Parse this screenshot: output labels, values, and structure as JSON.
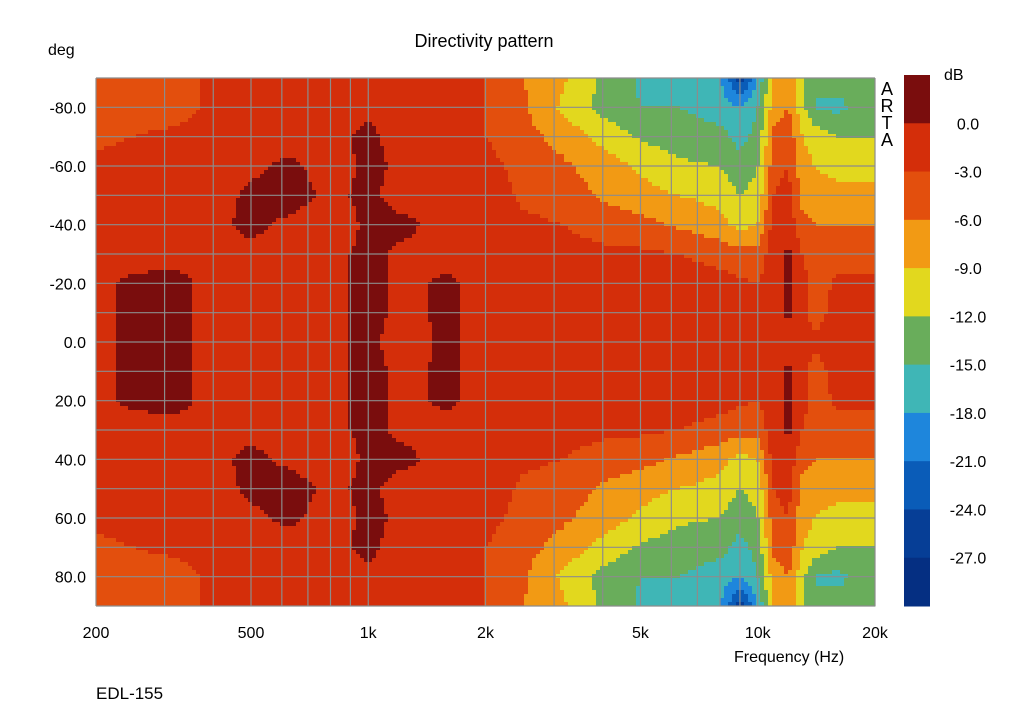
{
  "chart_data": {
    "type": "heatmap",
    "title": "Directivity pattern",
    "xlabel": "Frequency (Hz)",
    "ylabel": "deg",
    "x_scale": "log",
    "xlim": [
      200,
      20000
    ],
    "ylim": [
      -90,
      90
    ],
    "y_axis_inverted": true,
    "x_ticks": [
      {
        "value": 200,
        "label": "200"
      },
      {
        "value": 500,
        "label": "500"
      },
      {
        "value": 1000,
        "label": "1k"
      },
      {
        "value": 2000,
        "label": "2k"
      },
      {
        "value": 5000,
        "label": "5k"
      },
      {
        "value": 10000,
        "label": "10k"
      },
      {
        "value": 20000,
        "label": "20k"
      }
    ],
    "y_ticks": [
      {
        "value": -80,
        "label": "-80.0"
      },
      {
        "value": -60,
        "label": "-60.0"
      },
      {
        "value": -40,
        "label": "-40.0"
      },
      {
        "value": -20,
        "label": "-20.0"
      },
      {
        "value": 0,
        "label": "0.0"
      },
      {
        "value": 20,
        "label": "20.0"
      },
      {
        "value": 40,
        "label": "40.0"
      },
      {
        "value": 60,
        "label": "60.0"
      },
      {
        "value": 80,
        "label": "80.0"
      }
    ],
    "grid": true,
    "colorbar": {
      "unit": "dB",
      "tick_labels": [
        "0.0",
        "-3.0",
        "-6.0",
        "-9.0",
        "-12.0",
        "-15.0",
        "-18.0",
        "-21.0",
        "-24.0",
        "-27.0"
      ],
      "levels": [
        3,
        0,
        -3,
        -6,
        -9,
        -12,
        -15,
        -18,
        -21,
        -24,
        -27,
        -30
      ],
      "colors": [
        "#7a0d0d",
        "#d42e0a",
        "#e34f0d",
        "#f29a14",
        "#e2d81e",
        "#69ad5b",
        "#3fb6b6",
        "#1e86dc",
        "#0a5cb8",
        "#063e96",
        "#052f82"
      ]
    },
    "frequencies": [
      200,
      250,
      315,
      400,
      500,
      630,
      800,
      1000,
      1250,
      1600,
      2000,
      2500,
      3150,
      4000,
      5000,
      6300,
      8000,
      9000,
      10000,
      11000,
      12000,
      13000,
      14000,
      16000,
      18000,
      20000
    ],
    "angles": [
      -90,
      -80,
      -70,
      -60,
      -50,
      -40,
      -30,
      -20,
      -10,
      0,
      10,
      20,
      30,
      40,
      50,
      60,
      70,
      80,
      90
    ],
    "off_axis_levels_db": [
      [
        -5.5,
        -4.5,
        -4.0,
        -2.5,
        -2.0,
        -1.5,
        -1.0,
        -1.0,
        -1.0,
        -1.5,
        -3.0,
        -6.0,
        -8.5,
        -12.5,
        -15.5,
        -16.0,
        -17.5,
        -26.0,
        -18.0,
        -8.0,
        -7.0,
        -12.0,
        -15.0,
        -13.0,
        -15.0,
        -15.0
      ],
      [
        -4.5,
        -4.0,
        -4.0,
        -2.5,
        -2.0,
        -1.5,
        -1.0,
        -0.5,
        -1.0,
        -1.5,
        -3.0,
        -5.5,
        -9.5,
        -13.0,
        -15.0,
        -15.0,
        -16.5,
        -18.0,
        -15.0,
        -7.5,
        -6.0,
        -11.0,
        -15.0,
        -16.0,
        -14.0,
        -14.0
      ],
      [
        -3.5,
        -3.0,
        -2.5,
        -2.0,
        -1.5,
        -1.0,
        -0.5,
        0.5,
        -1.0,
        -1.5,
        -3.0,
        -5.0,
        -7.0,
        -10.0,
        -12.5,
        -13.5,
        -14.0,
        -16.0,
        -14.0,
        -5.0,
        -4.0,
        -9.0,
        -10.0,
        -12.0,
        -12.0,
        -12.0
      ],
      [
        -2.5,
        -2.0,
        -1.5,
        -1.0,
        -0.5,
        0.5,
        -1.0,
        0.5,
        -0.5,
        -1.0,
        -2.0,
        -4.0,
        -5.5,
        -7.5,
        -9.5,
        -11.5,
        -12.0,
        -14.0,
        -12.0,
        -4.0,
        -3.0,
        -8.0,
        -9.0,
        -10.0,
        -10.0,
        -10.0
      ],
      [
        -2.0,
        -1.5,
        -1.5,
        -1.0,
        0.5,
        1.0,
        -0.5,
        0.5,
        -1.0,
        -1.0,
        -1.5,
        -3.5,
        -4.0,
        -6.5,
        -8.0,
        -9.0,
        -10.0,
        -12.0,
        -11.0,
        -3.0,
        -2.0,
        -7.0,
        -8.0,
        -8.0,
        -8.0,
        -8.0
      ],
      [
        -1.5,
        -1.0,
        -1.0,
        -0.5,
        0.5,
        -0.5,
        -1.5,
        0.5,
        0.5,
        -1.0,
        -1.0,
        -2.5,
        -3.0,
        -4.0,
        -5.0,
        -6.5,
        -8.0,
        -10.0,
        -9.0,
        -1.5,
        -1.0,
        -5.0,
        -6.0,
        -6.0,
        -6.0,
        -6.0
      ],
      [
        -1.0,
        -1.0,
        -0.5,
        -0.5,
        -0.5,
        -1.0,
        -0.5,
        0.5,
        -0.5,
        -1.0,
        -1.0,
        -1.5,
        -2.0,
        -2.5,
        -2.5,
        -3.0,
        -4.0,
        -5.0,
        -5.0,
        -1.0,
        0.5,
        -3.0,
        -4.0,
        -4.0,
        -4.5,
        -4.5
      ],
      [
        -0.5,
        0.5,
        0.5,
        -0.5,
        -1.0,
        -1.5,
        -0.5,
        0.5,
        -0.5,
        0.5,
        -1.0,
        -1.0,
        -1.5,
        -1.5,
        -1.5,
        -1.5,
        -2.0,
        -2.5,
        -3.0,
        -1.0,
        0.5,
        -2.0,
        -4.5,
        -2.5,
        -2.5,
        -2.5
      ],
      [
        -0.5,
        0.5,
        0.5,
        -0.5,
        -1.0,
        -1.5,
        -0.5,
        0.5,
        -0.5,
        0.5,
        -1.0,
        -1.0,
        -1.0,
        -1.0,
        -1.0,
        -1.0,
        -1.0,
        -1.5,
        -2.0,
        -1.0,
        0.5,
        -2.0,
        -4.0,
        -2.0,
        -2.0,
        -2.0
      ],
      [
        -0.5,
        0.5,
        0.5,
        -0.5,
        -1.0,
        -1.5,
        -0.5,
        0.5,
        -1.0,
        0.5,
        -1.0,
        -1.0,
        -1.0,
        -1.0,
        -1.0,
        -1.0,
        -1.0,
        -1.0,
        -1.5,
        -1.5,
        -1.0,
        -2.5,
        -2.5,
        -2.0,
        -2.0,
        -2.0
      ],
      [
        -0.5,
        0.5,
        0.5,
        -0.5,
        -1.0,
        -1.5,
        -0.5,
        0.5,
        -0.5,
        0.5,
        -1.0,
        -1.0,
        -1.0,
        -1.0,
        -1.0,
        -1.0,
        -1.0,
        -1.5,
        -2.0,
        -1.0,
        0.5,
        -2.0,
        -4.0,
        -2.0,
        -2.0,
        -2.0
      ],
      [
        -0.5,
        0.5,
        0.5,
        -0.5,
        -1.0,
        -1.5,
        -0.5,
        0.5,
        -0.5,
        0.5,
        -1.0,
        -1.0,
        -1.5,
        -1.5,
        -1.5,
        -1.5,
        -2.0,
        -2.5,
        -3.0,
        -1.0,
        0.5,
        -2.0,
        -4.5,
        -2.5,
        -2.5,
        -2.5
      ],
      [
        -1.0,
        -1.0,
        -0.5,
        -0.5,
        -0.5,
        -1.0,
        -0.5,
        0.5,
        -0.5,
        -1.0,
        -1.0,
        -1.5,
        -2.0,
        -2.5,
        -2.5,
        -3.0,
        -4.0,
        -5.0,
        -5.0,
        -1.0,
        0.5,
        -3.0,
        -4.0,
        -4.0,
        -4.5,
        -4.5
      ],
      [
        -1.5,
        -1.0,
        -1.0,
        -0.5,
        0.5,
        -0.5,
        -1.5,
        0.5,
        0.5,
        -1.0,
        -1.0,
        -2.5,
        -3.0,
        -4.0,
        -5.0,
        -6.5,
        -8.0,
        -10.0,
        -9.0,
        -1.5,
        -1.0,
        -5.0,
        -6.0,
        -6.0,
        -6.0,
        -6.0
      ],
      [
        -2.0,
        -1.5,
        -1.5,
        -1.0,
        0.5,
        1.0,
        -0.5,
        0.5,
        -1.0,
        -1.0,
        -1.5,
        -3.5,
        -4.0,
        -6.5,
        -8.0,
        -9.0,
        -10.0,
        -12.0,
        -11.0,
        -3.0,
        -2.0,
        -7.0,
        -8.0,
        -8.0,
        -8.0,
        -8.0
      ],
      [
        -2.5,
        -2.0,
        -1.5,
        -1.0,
        -0.5,
        0.5,
        -1.0,
        0.5,
        -0.5,
        -1.0,
        -2.0,
        -4.0,
        -5.5,
        -7.5,
        -9.5,
        -11.5,
        -12.0,
        -14.0,
        -12.0,
        -4.0,
        -3.0,
        -8.0,
        -9.0,
        -10.0,
        -10.0,
        -10.0
      ],
      [
        -3.5,
        -3.0,
        -2.5,
        -2.0,
        -1.5,
        -1.0,
        -0.5,
        0.5,
        -1.0,
        -1.5,
        -3.0,
        -5.0,
        -7.0,
        -10.0,
        -12.5,
        -13.5,
        -14.0,
        -16.0,
        -14.0,
        -5.0,
        -4.0,
        -9.0,
        -10.0,
        -12.0,
        -12.0,
        -12.0
      ],
      [
        -4.5,
        -4.0,
        -4.0,
        -2.5,
        -2.0,
        -1.5,
        -1.0,
        -0.5,
        -1.0,
        -1.5,
        -3.0,
        -5.5,
        -9.5,
        -13.0,
        -15.0,
        -15.0,
        -16.5,
        -18.0,
        -15.0,
        -7.5,
        -6.0,
        -11.0,
        -15.0,
        -16.0,
        -14.0,
        -14.0
      ],
      [
        -5.5,
        -4.5,
        -4.0,
        -2.5,
        -2.0,
        -1.5,
        -1.0,
        -1.0,
        -1.0,
        -1.5,
        -3.0,
        -6.0,
        -8.5,
        -12.5,
        -15.5,
        -16.0,
        -17.5,
        -26.0,
        -18.0,
        -8.0,
        -7.0,
        -12.0,
        -15.0,
        -13.0,
        -15.0,
        -15.0
      ]
    ]
  },
  "watermark": [
    "A",
    "R",
    "T",
    "A"
  ],
  "footer": "EDL-155",
  "colors": {
    "grid": "#8c8c8c",
    "text": "#000000",
    "background": "#ffffff"
  }
}
